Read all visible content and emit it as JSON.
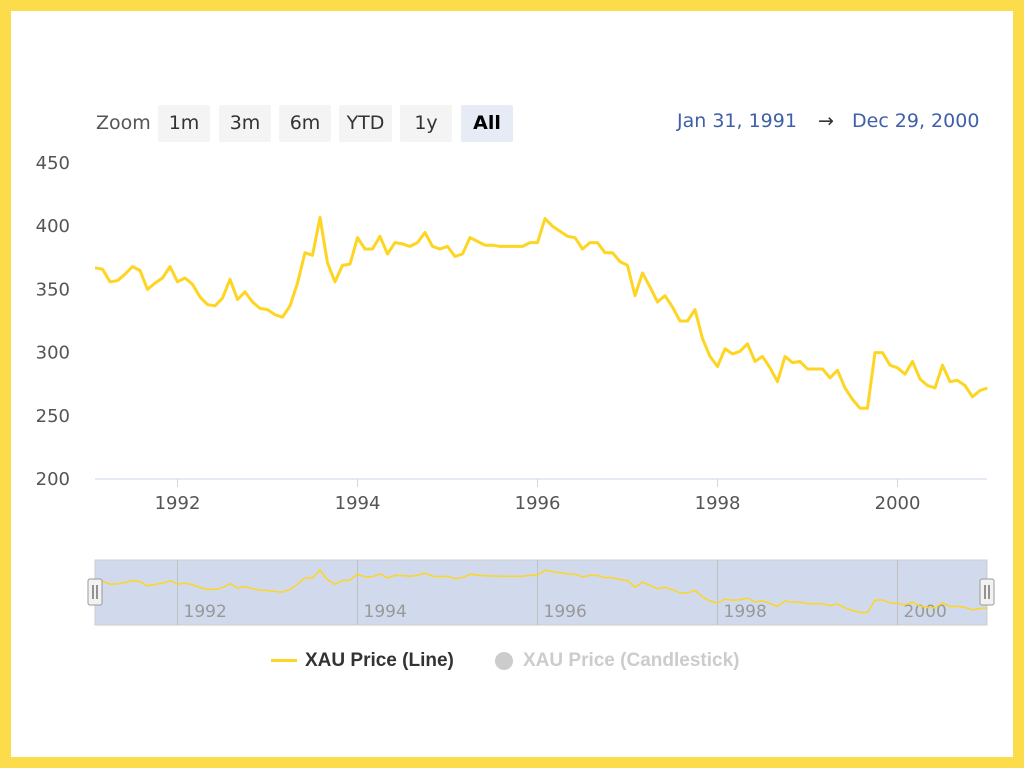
{
  "rangeSelector": {
    "zoom_label": "Zoom",
    "buttons": [
      "1m",
      "3m",
      "6m",
      "YTD",
      "1y",
      "All"
    ],
    "selected": "All",
    "from": "Jan 31, 1991",
    "arrow": "→",
    "to": "Dec 29, 2000"
  },
  "colors": {
    "line": "#fdd522",
    "navigator_mask": "rgba(102,133,194,0.3)",
    "axis_text": "#555555",
    "legend_hidden": "#cccccc"
  },
  "chart_data": {
    "type": "line",
    "ylim": [
      200,
      450
    ],
    "yticks": [
      "200",
      "250",
      "300",
      "350",
      "400",
      "450"
    ],
    "xticks": [
      "1992",
      "1994",
      "1996",
      "1998",
      "2000"
    ],
    "navigator_ticks": [
      "1992",
      "1994",
      "1996",
      "1998",
      "2000"
    ],
    "legend": [
      {
        "name": "XAU Price (Line)",
        "visible": true
      },
      {
        "name": "XAU Price (Candlestick)",
        "visible": false
      }
    ],
    "series": [
      {
        "name": "XAU Price (Line)",
        "dates": [
          "1991-01",
          "1991-02",
          "1991-03",
          "1991-04",
          "1991-05",
          "1991-06",
          "1991-07",
          "1991-08",
          "1991-09",
          "1991-10",
          "1991-11",
          "1991-12",
          "1992-01",
          "1992-02",
          "1992-03",
          "1992-04",
          "1992-05",
          "1992-06",
          "1992-07",
          "1992-08",
          "1992-09",
          "1992-10",
          "1992-11",
          "1992-12",
          "1993-01",
          "1993-02",
          "1993-03",
          "1993-04",
          "1993-05",
          "1993-06",
          "1993-07",
          "1993-08",
          "1993-09",
          "1993-10",
          "1993-11",
          "1993-12",
          "1994-01",
          "1994-02",
          "1994-03",
          "1994-04",
          "1994-05",
          "1994-06",
          "1994-07",
          "1994-08",
          "1994-09",
          "1994-10",
          "1994-11",
          "1994-12",
          "1995-01",
          "1995-02",
          "1995-03",
          "1995-04",
          "1995-05",
          "1995-06",
          "1995-07",
          "1995-08",
          "1995-09",
          "1995-10",
          "1995-11",
          "1995-12",
          "1996-01",
          "1996-02",
          "1996-03",
          "1996-04",
          "1996-05",
          "1996-06",
          "1996-07",
          "1996-08",
          "1996-09",
          "1996-10",
          "1996-11",
          "1996-12",
          "1997-01",
          "1997-02",
          "1997-03",
          "1997-04",
          "1997-05",
          "1997-06",
          "1997-07",
          "1997-08",
          "1997-09",
          "1997-10",
          "1997-11",
          "1997-12",
          "1998-01",
          "1998-02",
          "1998-03",
          "1998-04",
          "1998-05",
          "1998-06",
          "1998-07",
          "1998-08",
          "1998-09",
          "1998-10",
          "1998-11",
          "1998-12",
          "1999-01",
          "1999-02",
          "1999-03",
          "1999-04",
          "1999-05",
          "1999-06",
          "1999-07",
          "1999-08",
          "1999-09",
          "1999-10",
          "1999-11",
          "1999-12",
          "2000-01",
          "2000-02",
          "2000-03",
          "2000-04",
          "2000-05",
          "2000-06",
          "2000-07",
          "2000-08",
          "2000-09",
          "2000-10",
          "2000-11",
          "2000-12"
        ],
        "values": [
          367,
          366,
          356,
          357,
          362,
          368,
          365,
          350,
          355,
          359,
          368,
          356,
          359,
          354,
          344,
          338,
          337,
          343,
          358,
          342,
          348,
          340,
          335,
          334,
          330,
          328,
          337,
          355,
          379,
          377,
          407,
          371,
          356,
          369,
          370,
          391,
          382,
          382,
          392,
          378,
          387,
          386,
          384,
          387,
          395,
          384,
          382,
          384,
          376,
          378,
          391,
          388,
          385,
          385,
          384,
          384,
          384,
          384,
          387,
          387,
          406,
          400,
          396,
          392,
          391,
          382,
          387,
          387,
          379,
          379,
          372,
          369,
          345,
          363,
          352,
          340,
          345,
          336,
          325,
          325,
          334,
          311,
          297,
          289,
          303,
          299,
          301,
          307,
          293,
          297,
          288,
          277,
          297,
          292,
          293,
          287,
          287,
          287,
          280,
          286,
          272,
          263,
          256,
          256,
          300,
          300,
          290,
          288,
          283,
          293,
          279,
          274,
          272,
          290,
          277,
          278,
          274,
          265,
          270,
          272
        ]
      }
    ]
  }
}
